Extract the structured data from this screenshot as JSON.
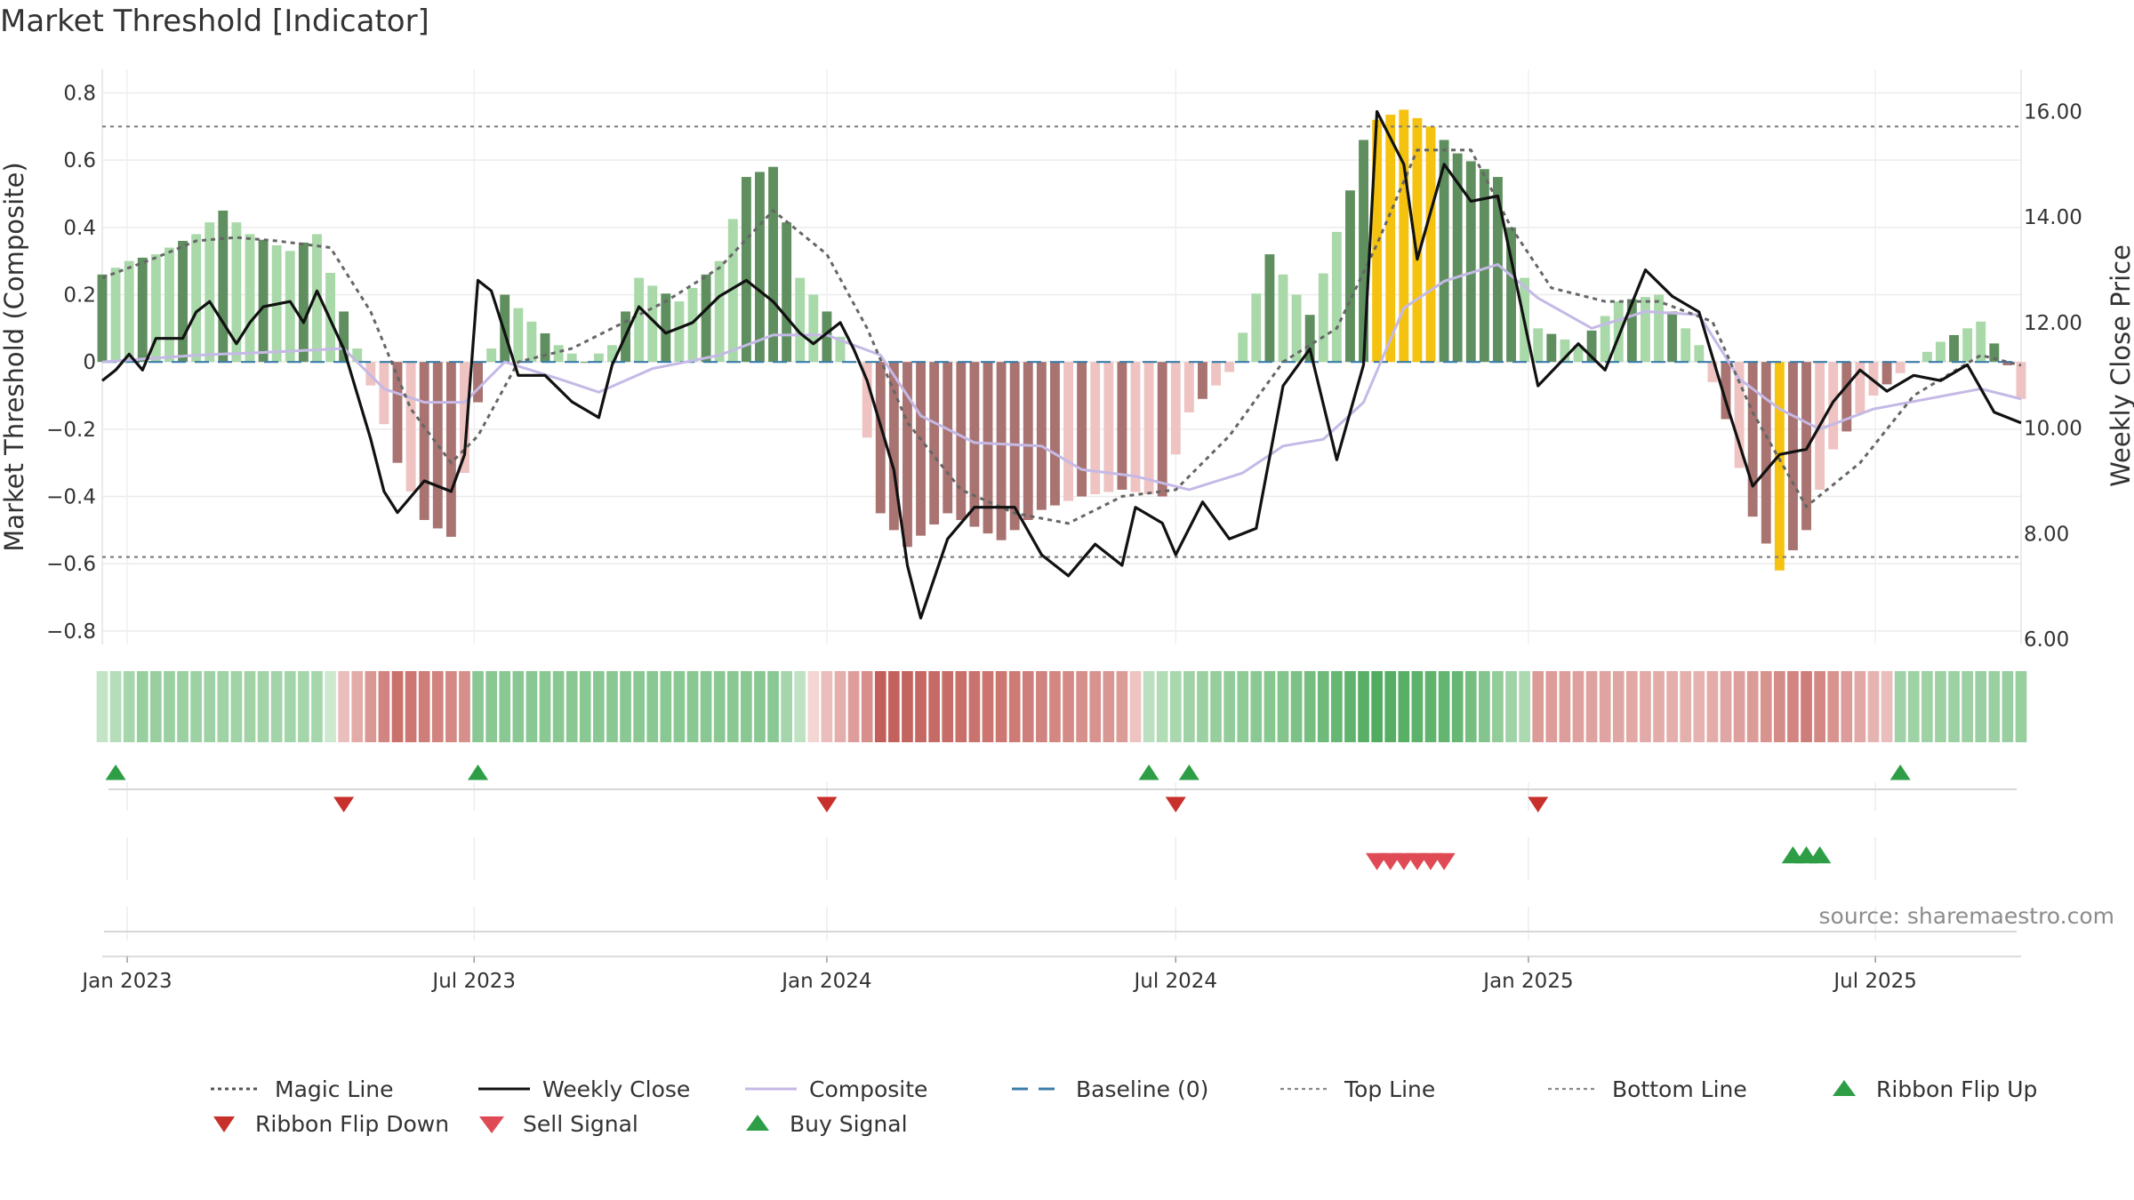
{
  "title": "Market Threshold [Indicator]",
  "source_note": "source: sharemaestro.com",
  "colors": {
    "bullish_strong": "#5f8f5f",
    "bullish_light": "#a9d8a9",
    "bearish_strong": "#a87370",
    "bearish_light": "#eec3c1",
    "extreme": "#f5c20f",
    "weekly_close": "#111111",
    "composite": "#c5b9e6",
    "magic_line": "#666666",
    "baseline": "#3a7ca8",
    "threshold_line": "#808080",
    "buy": "#2e9e46",
    "sell": "#d23b3b"
  },
  "legend": [
    {
      "label": "Magic Line",
      "style": "dotted-dark"
    },
    {
      "label": "Weekly Close",
      "style": "solid-black"
    },
    {
      "label": "Composite",
      "style": "solid-lavender"
    },
    {
      "label": "Baseline (0)",
      "style": "dashed-blue"
    },
    {
      "label": "Top Line",
      "style": "dotted-gray"
    },
    {
      "label": "Bottom Line",
      "style": "dotted-gray"
    },
    {
      "label": "Ribbon Flip Up",
      "style": "triangle-up-green"
    },
    {
      "label": "Ribbon Flip Down",
      "style": "triangle-down-red"
    },
    {
      "label": "Sell Signal",
      "style": "triangle-down-lightred"
    },
    {
      "label": "Buy Signal",
      "style": "triangle-up-green"
    }
  ],
  "chart_data": {
    "type": "bar",
    "title": "Market Threshold [Indicator]",
    "ylabel": "Market Threshold (Composite)",
    "y2label": "Weekly Close Price",
    "ylim": [
      -0.84,
      0.87
    ],
    "y2lim": [
      5.9,
      16.8
    ],
    "yticks": [
      "0.8",
      "0.6",
      "0.4",
      "0.2",
      "0",
      "−0.2",
      "−0.4",
      "−0.6",
      "−0.8"
    ],
    "yticks_values": [
      0.8,
      0.6,
      0.4,
      0.2,
      0,
      -0.2,
      -0.4,
      -0.6,
      -0.8
    ],
    "y2ticks": [
      "16.00",
      "14.00",
      "12.00",
      "10.00",
      "8.00",
      "6.00"
    ],
    "y2ticks_values": [
      16,
      14,
      12,
      10,
      8,
      6
    ],
    "x_start": "2022-12-19",
    "x_end": "2025-09-15",
    "x_tick_labels": [
      "Jan 2023",
      "Jul 2023",
      "Jan 2024",
      "Jul 2024",
      "Jan 2025",
      "Jul 2025"
    ],
    "x_tick_dates": [
      "2023-01-01",
      "2023-07-01",
      "2024-01-01",
      "2024-07-01",
      "2025-01-01",
      "2025-07-01"
    ],
    "top_line": 0.7,
    "bottom_line": -0.58,
    "baseline": 0,
    "composite_keys": [
      [
        "2022-12-19",
        0.26
      ],
      [
        "2023-01-02",
        0.3
      ],
      [
        "2023-01-16",
        0.32
      ],
      [
        "2023-02-06",
        0.38
      ],
      [
        "2023-02-20",
        0.45
      ],
      [
        "2023-03-06",
        0.38
      ],
      [
        "2023-03-27",
        0.33
      ],
      [
        "2023-04-10",
        0.38
      ],
      [
        "2023-04-24",
        0.15
      ],
      [
        "2023-05-08",
        -0.07
      ],
      [
        "2023-05-22",
        -0.3
      ],
      [
        "2023-06-05",
        -0.47
      ],
      [
        "2023-06-19",
        -0.52
      ],
      [
        "2023-06-26",
        -0.33
      ],
      [
        "2023-07-03",
        -0.12
      ],
      [
        "2023-07-17",
        0.2
      ],
      [
        "2023-07-31",
        0.12
      ],
      [
        "2023-08-14",
        0.05
      ],
      [
        "2023-08-28",
        0.0
      ],
      [
        "2023-09-11",
        0.05
      ],
      [
        "2023-09-25",
        0.25
      ],
      [
        "2023-10-16",
        0.18
      ],
      [
        "2023-11-06",
        0.3
      ],
      [
        "2023-11-20",
        0.55
      ],
      [
        "2023-12-04",
        0.58
      ],
      [
        "2023-12-18",
        0.25
      ],
      [
        "2024-01-01",
        0.15
      ],
      [
        "2024-01-15",
        0.0
      ],
      [
        "2024-01-29",
        -0.45
      ],
      [
        "2024-02-12",
        -0.55
      ],
      [
        "2024-03-04",
        -0.45
      ],
      [
        "2024-04-01",
        -0.53
      ],
      [
        "2024-04-22",
        -0.44
      ],
      [
        "2024-05-13",
        -0.4
      ],
      [
        "2024-06-03",
        -0.38
      ],
      [
        "2024-06-24",
        -0.4
      ],
      [
        "2024-07-08",
        -0.15
      ],
      [
        "2024-07-29",
        -0.03
      ],
      [
        "2024-08-19",
        0.32
      ],
      [
        "2024-09-09",
        0.14
      ],
      [
        "2024-09-30",
        0.51
      ],
      [
        "2024-10-07",
        0.66
      ],
      [
        "2024-10-14",
        0.72
      ],
      [
        "2024-10-28",
        0.75
      ],
      [
        "2024-11-11",
        0.7
      ],
      [
        "2024-11-25",
        0.62
      ],
      [
        "2024-12-16",
        0.55
      ],
      [
        "2025-01-06",
        0.1
      ],
      [
        "2025-01-27",
        0.05
      ],
      [
        "2025-02-17",
        0.18
      ],
      [
        "2025-03-10",
        0.2
      ],
      [
        "2025-03-31",
        0.05
      ],
      [
        "2025-04-14",
        -0.17
      ],
      [
        "2025-04-28",
        -0.46
      ],
      [
        "2025-05-12",
        -0.62
      ],
      [
        "2025-05-26",
        -0.5
      ],
      [
        "2025-06-09",
        -0.26
      ],
      [
        "2025-06-30",
        -0.1
      ],
      [
        "2025-07-21",
        0.0
      ],
      [
        "2025-08-04",
        0.06
      ],
      [
        "2025-08-25",
        0.12
      ],
      [
        "2025-09-08",
        -0.01
      ],
      [
        "2025-09-15",
        -0.11
      ]
    ],
    "weekly_close_keys": [
      [
        "2022-12-19",
        10.9
      ],
      [
        "2022-12-26",
        11.1
      ],
      [
        "2023-01-02",
        11.4
      ],
      [
        "2023-01-09",
        11.1
      ],
      [
        "2023-01-16",
        11.7
      ],
      [
        "2023-01-30",
        11.7
      ],
      [
        "2023-02-06",
        12.2
      ],
      [
        "2023-02-13",
        12.4
      ],
      [
        "2023-02-20",
        12.0
      ],
      [
        "2023-02-27",
        11.6
      ],
      [
        "2023-03-06",
        12.0
      ],
      [
        "2023-03-13",
        12.3
      ],
      [
        "2023-03-27",
        12.4
      ],
      [
        "2023-04-03",
        12.0
      ],
      [
        "2023-04-10",
        12.6
      ],
      [
        "2023-04-24",
        11.5
      ],
      [
        "2023-05-08",
        9.8
      ],
      [
        "2023-05-15",
        8.8
      ],
      [
        "2023-05-22",
        8.4
      ],
      [
        "2023-06-05",
        9.0
      ],
      [
        "2023-06-19",
        8.8
      ],
      [
        "2023-06-26",
        9.5
      ],
      [
        "2023-07-03",
        12.8
      ],
      [
        "2023-07-10",
        12.6
      ],
      [
        "2023-07-24",
        11.0
      ],
      [
        "2023-08-07",
        11.0
      ],
      [
        "2023-08-21",
        10.5
      ],
      [
        "2023-09-04",
        10.2
      ],
      [
        "2023-09-11",
        11.2
      ],
      [
        "2023-09-25",
        12.3
      ],
      [
        "2023-10-09",
        11.8
      ],
      [
        "2023-10-23",
        12.0
      ],
      [
        "2023-11-06",
        12.5
      ],
      [
        "2023-11-20",
        12.8
      ],
      [
        "2023-12-04",
        12.4
      ],
      [
        "2023-12-18",
        11.8
      ],
      [
        "2023-12-25",
        11.6
      ],
      [
        "2024-01-08",
        12.0
      ],
      [
        "2024-01-15",
        11.5
      ],
      [
        "2024-01-22",
        10.9
      ],
      [
        "2024-02-05",
        9.2
      ],
      [
        "2024-02-12",
        7.4
      ],
      [
        "2024-02-19",
        6.4
      ],
      [
        "2024-03-04",
        7.9
      ],
      [
        "2024-03-18",
        8.5
      ],
      [
        "2024-04-08",
        8.5
      ],
      [
        "2024-04-22",
        7.6
      ],
      [
        "2024-05-06",
        7.2
      ],
      [
        "2024-05-20",
        7.8
      ],
      [
        "2024-06-03",
        7.4
      ],
      [
        "2024-06-10",
        8.5
      ],
      [
        "2024-06-24",
        8.2
      ],
      [
        "2024-07-01",
        7.6
      ],
      [
        "2024-07-15",
        8.6
      ],
      [
        "2024-07-29",
        7.9
      ],
      [
        "2024-08-12",
        8.1
      ],
      [
        "2024-08-26",
        10.8
      ],
      [
        "2024-09-09",
        11.5
      ],
      [
        "2024-09-23",
        9.4
      ],
      [
        "2024-10-07",
        11.2
      ],
      [
        "2024-10-14",
        16.0
      ],
      [
        "2024-10-28",
        15.0
      ],
      [
        "2024-11-04",
        13.2
      ],
      [
        "2024-11-18",
        15.0
      ],
      [
        "2024-12-02",
        14.3
      ],
      [
        "2024-12-16",
        14.4
      ],
      [
        "2025-01-06",
        10.8
      ],
      [
        "2025-01-27",
        11.6
      ],
      [
        "2025-02-10",
        11.1
      ],
      [
        "2025-03-03",
        13.0
      ],
      [
        "2025-03-17",
        12.5
      ],
      [
        "2025-03-31",
        12.2
      ],
      [
        "2025-04-14",
        10.5
      ],
      [
        "2025-04-28",
        8.9
      ],
      [
        "2025-05-12",
        9.5
      ],
      [
        "2025-05-26",
        9.6
      ],
      [
        "2025-06-09",
        10.5
      ],
      [
        "2025-06-23",
        11.1
      ],
      [
        "2025-07-07",
        10.7
      ],
      [
        "2025-07-21",
        11.0
      ],
      [
        "2025-08-04",
        10.9
      ],
      [
        "2025-08-18",
        11.2
      ],
      [
        "2025-09-01",
        10.3
      ],
      [
        "2025-09-15",
        10.1
      ]
    ],
    "magic_line_keys": [
      [
        "2022-12-19",
        0.25
      ],
      [
        "2023-01-16",
        0.31
      ],
      [
        "2023-02-06",
        0.36
      ],
      [
        "2023-02-27",
        0.37
      ],
      [
        "2023-03-20",
        0.36
      ],
      [
        "2023-04-17",
        0.34
      ],
      [
        "2023-05-08",
        0.15
      ],
      [
        "2023-05-29",
        -0.14
      ],
      [
        "2023-06-19",
        -0.3
      ],
      [
        "2023-07-03",
        -0.22
      ],
      [
        "2023-07-24",
        0.0
      ],
      [
        "2023-08-21",
        0.04
      ],
      [
        "2023-09-11",
        0.1
      ],
      [
        "2023-10-09",
        0.18
      ],
      [
        "2023-11-06",
        0.28
      ],
      [
        "2023-12-04",
        0.45
      ],
      [
        "2024-01-01",
        0.32
      ],
      [
        "2024-01-22",
        0.1
      ],
      [
        "2024-02-12",
        -0.18
      ],
      [
        "2024-03-11",
        -0.38
      ],
      [
        "2024-04-08",
        -0.45
      ],
      [
        "2024-05-06",
        -0.48
      ],
      [
        "2024-06-03",
        -0.4
      ],
      [
        "2024-07-01",
        -0.38
      ],
      [
        "2024-07-29",
        -0.22
      ],
      [
        "2024-08-26",
        0.0
      ],
      [
        "2024-09-23",
        0.1
      ],
      [
        "2024-10-14",
        0.35
      ],
      [
        "2024-11-04",
        0.63
      ],
      [
        "2024-12-02",
        0.63
      ],
      [
        "2024-12-23",
        0.4
      ],
      [
        "2025-01-13",
        0.22
      ],
      [
        "2025-02-10",
        0.18
      ],
      [
        "2025-03-10",
        0.18
      ],
      [
        "2025-04-07",
        0.12
      ],
      [
        "2025-04-28",
        -0.15
      ],
      [
        "2025-05-26",
        -0.43
      ],
      [
        "2025-06-23",
        -0.3
      ],
      [
        "2025-07-21",
        -0.1
      ],
      [
        "2025-08-25",
        0.02
      ],
      [
        "2025-09-15",
        -0.01
      ]
    ],
    "composite_line_keys": [
      [
        "2022-12-19",
        0.0
      ],
      [
        "2023-02-06",
        0.02
      ],
      [
        "2023-03-20",
        0.03
      ],
      [
        "2023-04-24",
        0.04
      ],
      [
        "2023-05-15",
        -0.08
      ],
      [
        "2023-06-05",
        -0.12
      ],
      [
        "2023-06-26",
        -0.12
      ],
      [
        "2023-07-17",
        0.0
      ],
      [
        "2023-08-14",
        -0.05
      ],
      [
        "2023-09-04",
        -0.09
      ],
      [
        "2023-10-02",
        -0.02
      ],
      [
        "2023-11-06",
        0.02
      ],
      [
        "2023-12-04",
        0.08
      ],
      [
        "2024-01-01",
        0.08
      ],
      [
        "2024-01-29",
        0.02
      ],
      [
        "2024-02-19",
        -0.16
      ],
      [
        "2024-03-18",
        -0.24
      ],
      [
        "2024-04-22",
        -0.25
      ],
      [
        "2024-05-13",
        -0.32
      ],
      [
        "2024-06-10",
        -0.34
      ],
      [
        "2024-07-08",
        -0.38
      ],
      [
        "2024-08-05",
        -0.33
      ],
      [
        "2024-08-26",
        -0.25
      ],
      [
        "2024-09-16",
        -0.23
      ],
      [
        "2024-10-07",
        -0.12
      ],
      [
        "2024-10-28",
        0.16
      ],
      [
        "2024-11-18",
        0.24
      ],
      [
        "2024-12-16",
        0.29
      ],
      [
        "2025-01-06",
        0.19
      ],
      [
        "2025-02-03",
        0.1
      ],
      [
        "2025-03-03",
        0.15
      ],
      [
        "2025-03-31",
        0.14
      ],
      [
        "2025-04-21",
        -0.05
      ],
      [
        "2025-05-12",
        -0.14
      ],
      [
        "2025-06-02",
        -0.2
      ],
      [
        "2025-06-30",
        -0.14
      ],
      [
        "2025-07-28",
        -0.11
      ],
      [
        "2025-08-25",
        -0.08
      ],
      [
        "2025-09-15",
        -0.11
      ]
    ],
    "ribbon_keys": [
      [
        "2022-12-19",
        0.15
      ],
      [
        "2023-01-09",
        0.45
      ],
      [
        "2023-04-10",
        0.35
      ],
      [
        "2023-04-24",
        -0.2
      ],
      [
        "2023-05-22",
        -0.85
      ],
      [
        "2023-06-26",
        -0.6
      ],
      [
        "2023-07-03",
        0.55
      ],
      [
        "2023-09-04",
        0.55
      ],
      [
        "2023-12-04",
        0.55
      ],
      [
        "2024-01-01",
        -0.2
      ],
      [
        "2024-01-22",
        -0.6
      ],
      [
        "2024-01-29",
        -1.0
      ],
      [
        "2024-04-01",
        -0.8
      ],
      [
        "2024-06-03",
        -0.5
      ],
      [
        "2024-06-17",
        0.2
      ],
      [
        "2024-07-08",
        0.4
      ],
      [
        "2024-08-26",
        0.6
      ],
      [
        "2024-10-14",
        0.95
      ],
      [
        "2024-11-25",
        0.8
      ],
      [
        "2024-12-30",
        0.3
      ],
      [
        "2025-01-06",
        -0.5
      ],
      [
        "2025-03-31",
        -0.3
      ],
      [
        "2025-04-28",
        -0.5
      ],
      [
        "2025-05-26",
        -0.75
      ],
      [
        "2025-07-07",
        -0.2
      ],
      [
        "2025-07-14",
        0.4
      ],
      [
        "2025-09-15",
        0.45
      ]
    ],
    "ribbon_gap": [
      "2024-01-22",
      "2024-01-29"
    ],
    "ribbon_flip_up": [
      "2022-12-26",
      "2023-07-03",
      "2024-06-17",
      "2024-07-08",
      "2025-07-14"
    ],
    "ribbon_flip_down": [
      "2023-04-24",
      "2024-01-01",
      "2024-07-01",
      "2025-01-06"
    ],
    "sell_signals": [
      "2024-10-14",
      "2024-10-21",
      "2024-10-28",
      "2024-11-04",
      "2024-11-11",
      "2024-11-18"
    ],
    "buy_signals": [
      "2025-05-19",
      "2025-05-26",
      "2025-06-02"
    ]
  }
}
